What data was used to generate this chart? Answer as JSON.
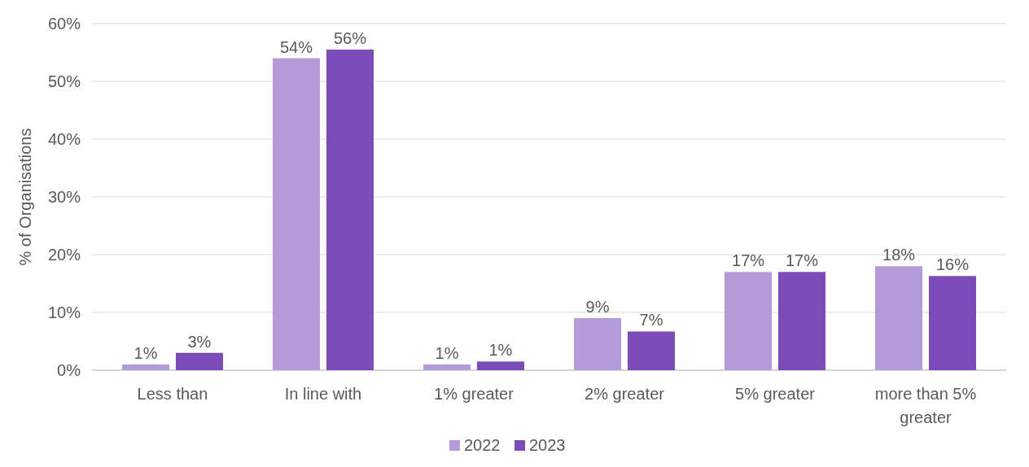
{
  "chart_data": {
    "type": "bar",
    "ylabel": "% of Organisations",
    "categories": [
      "Less than",
      "In line with",
      "1% greater",
      "2% greater",
      "5% greater",
      "more than 5% greater"
    ],
    "series": [
      {
        "name": "2022",
        "color": "#b39ad8",
        "values": [
          1,
          54,
          1,
          9,
          17,
          18
        ],
        "value_labels": [
          "1%",
          "54%",
          "1%",
          "9%",
          "17%",
          "18%"
        ]
      },
      {
        "name": "2023",
        "color": "#7b4bb7",
        "values": [
          3,
          55.5,
          1.5,
          6.7,
          17,
          16.3
        ],
        "value_labels": [
          "3%",
          "56%",
          "1%",
          "7%",
          "17%",
          "16%"
        ]
      }
    ],
    "ylim": [
      0,
      60
    ],
    "yticks": [
      {
        "value": 0,
        "label": "0%"
      },
      {
        "value": 10,
        "label": "10%"
      },
      {
        "value": 20,
        "label": "20%"
      },
      {
        "value": 30,
        "label": "30%"
      },
      {
        "value": 40,
        "label": "40%"
      },
      {
        "value": 50,
        "label": "50%"
      },
      {
        "value": 60,
        "label": "60%"
      }
    ],
    "grid": "y",
    "legend": "bottom"
  }
}
